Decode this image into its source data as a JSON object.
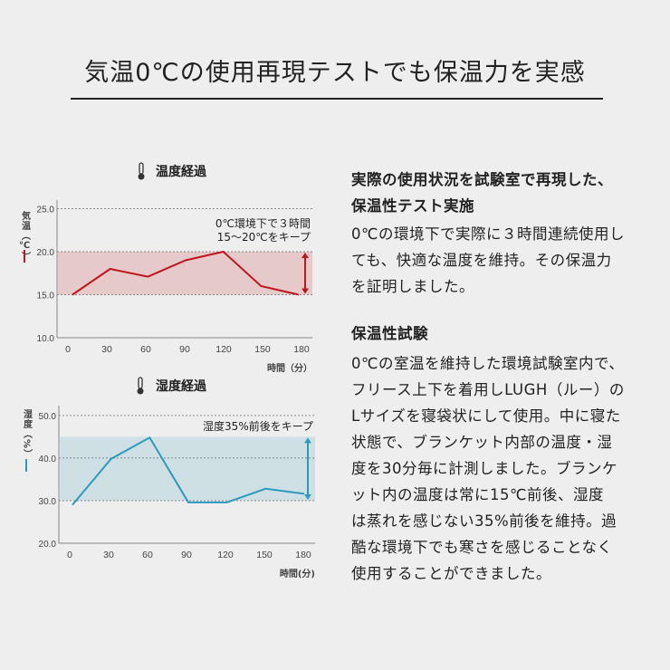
{
  "title": "気温0℃の使用再現テストでも保温力を実感",
  "chart_data": [
    {
      "type": "line",
      "title": "温度経過",
      "icon": "thermometer-icon",
      "ylabel": "気温（℃）",
      "xlabel": "時間（分）",
      "x": [
        0,
        30,
        60,
        90,
        120,
        150,
        180
      ],
      "values": [
        15,
        18,
        17.1,
        19,
        20,
        16,
        15
      ],
      "yticks": [
        "10.0",
        "15.0",
        "20.0",
        "25.0"
      ],
      "ytick_values": [
        10,
        15,
        20,
        25
      ],
      "xticks": [
        "0",
        "30",
        "60",
        "90",
        "120",
        "150",
        "180"
      ],
      "ylim": [
        10,
        26
      ],
      "xlim": [
        0,
        180
      ],
      "band": [
        15,
        20
      ],
      "annotation": [
        "0℃環境下で３時間",
        "15〜20℃をキープ"
      ],
      "color": "#c0141e",
      "band_color": "#e6c9c9",
      "grid": "dotted"
    },
    {
      "type": "line",
      "title": "湿度経過",
      "icon": "thermometer-icon",
      "ylabel": "湿度（%）",
      "xlabel": "時間(分)",
      "x": [
        0,
        30,
        60,
        90,
        120,
        150,
        180
      ],
      "values": [
        29,
        39.8,
        44.8,
        29.6,
        29.6,
        32.8,
        31.6
      ],
      "yticks": [
        "20.0",
        "30.0",
        "40.0",
        "50.0"
      ],
      "ytick_values": [
        20,
        30,
        40,
        50
      ],
      "xticks": [
        "0",
        "30",
        "60",
        "90",
        "120",
        "150",
        "180"
      ],
      "ylim": [
        20,
        52.3
      ],
      "xlim": [
        0,
        180
      ],
      "band": [
        30,
        45
      ],
      "annotation": [
        "湿度35%前後をキープ"
      ],
      "color": "#2b9bbd",
      "band_color": "#cfe0e4",
      "grid": "dotted"
    }
  ],
  "right": {
    "heading1": [
      "実際の使用状況を試験室で再現した、",
      "保温性テスト実施"
    ],
    "para1": [
      "0℃の環境下で実際に３時間連続使用し",
      "ても、快適な温度を維持。その保温力",
      "を証明しました。"
    ],
    "heading2": "保温性試験",
    "para2": [
      "0℃の室温を維持した環境試験室内で、",
      "フリース上下を着用しLUGH（ルー）の",
      "Lサイズを寝袋状にして使用。中に寝た",
      "状態で、ブランケット内部の温度・湿",
      "度を30分毎に計測しました。ブランケ",
      "ット内の温度は常に15℃前後、湿度",
      "は蒸れを感じない35%前後を維持。過",
      "酷な環境下でも寒さを感じることなく",
      "使用することができました。"
    ]
  }
}
